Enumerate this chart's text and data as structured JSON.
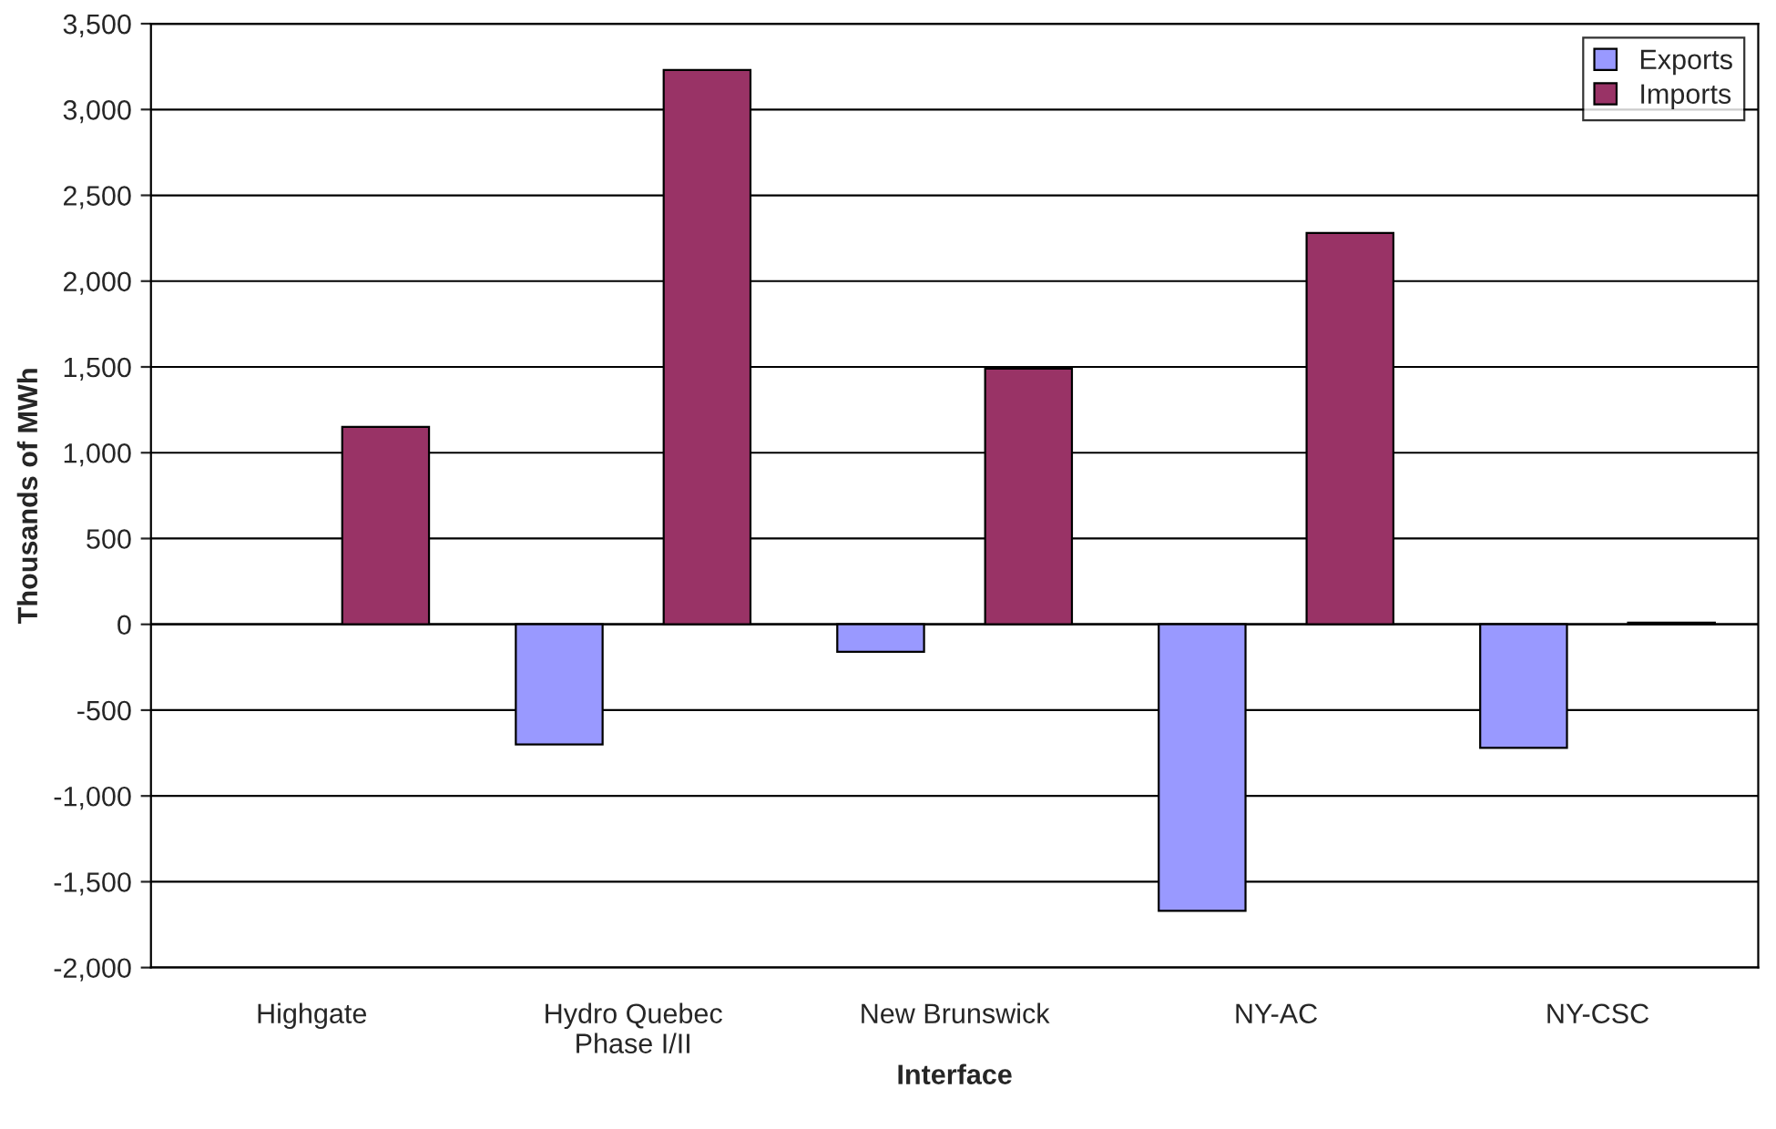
{
  "chart_data": {
    "type": "bar",
    "xlabel": "Interface",
    "ylabel": "Thousands of MWh",
    "categories": [
      "Highgate",
      "Hydro Quebec\nPhase I/II",
      "New Brunswick",
      "NY-AC",
      "NY-CSC"
    ],
    "series": [
      {
        "name": "Exports",
        "color": "#9999ff",
        "values": [
          null,
          -700,
          -160,
          -1670,
          -720
        ]
      },
      {
        "name": "Imports",
        "color": "#993366",
        "values": [
          1150,
          3230,
          1490,
          2280,
          10
        ]
      }
    ],
    "ylim": [
      -2000,
      3500
    ],
    "yticks": [
      {
        "value": -2000,
        "label": "-2,000"
      },
      {
        "value": -1500,
        "label": "-1,500"
      },
      {
        "value": -1000,
        "label": "-1,000"
      },
      {
        "value": -500,
        "label": "-500"
      },
      0,
      500,
      {
        "value": 1000,
        "label": "1,000"
      },
      {
        "value": 1500,
        "label": "1,500"
      },
      {
        "value": 2000,
        "label": "2,000"
      },
      {
        "value": 2500,
        "label": "2,500"
      },
      {
        "value": 3000,
        "label": "3,000"
      },
      {
        "value": 3500,
        "label": "3,500"
      }
    ],
    "grid": "y",
    "legend": "top right"
  }
}
